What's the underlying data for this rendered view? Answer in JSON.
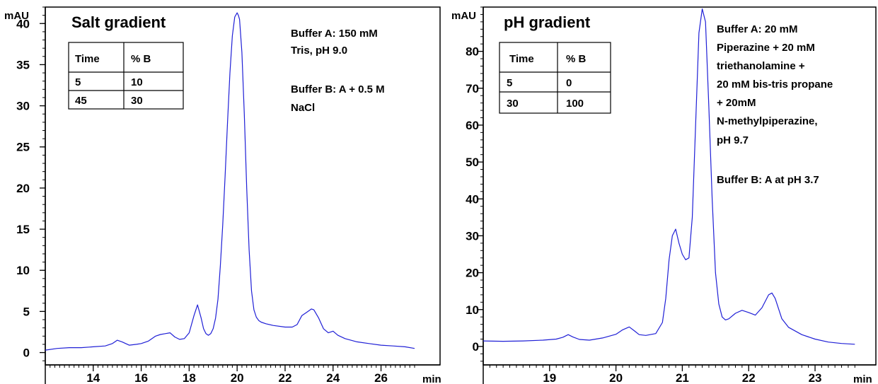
{
  "chart_data": [
    {
      "type": "line",
      "title": "Salt gradient",
      "ylabel": "mAU",
      "xunit": "min",
      "xlim": [
        12.0,
        27.4
      ],
      "ylim": [
        -1.5,
        42.0
      ],
      "xticks": [
        14,
        16,
        18,
        20,
        22,
        24,
        26
      ],
      "yticks": [
        0,
        5,
        10,
        15,
        20,
        25,
        30,
        35,
        40
      ],
      "xminor_step": 0.2,
      "yminor_step": 1,
      "line_color": "#1f1fd6",
      "grid": false,
      "table": {
        "headers": [
          "Time",
          "% B"
        ],
        "rows": [
          [
            "5",
            "10"
          ],
          [
            "45",
            "30"
          ]
        ]
      },
      "notes": [
        "Buffer A: 150 mM",
        "Tris, pH 9.0",
        "",
        "Buffer B: A + 0.5 M",
        "NaCl"
      ],
      "series": [
        {
          "x": [
            12.0,
            12.5,
            13.0,
            13.5,
            14.0,
            14.5,
            14.8,
            15.0,
            15.2,
            15.5,
            15.8,
            16.0,
            16.3,
            16.6,
            16.8,
            17.0,
            17.2,
            17.4,
            17.6,
            17.8,
            18.0,
            18.2,
            18.35,
            18.5,
            18.6,
            18.7,
            18.8,
            18.9,
            19.0,
            19.1,
            19.2,
            19.3,
            19.4,
            19.5,
            19.6,
            19.7,
            19.8,
            19.9,
            20.0,
            20.05,
            20.1,
            20.2,
            20.3,
            20.4,
            20.5,
            20.6,
            20.7,
            20.8,
            20.9,
            21.0,
            21.2,
            21.5,
            22.0,
            22.3,
            22.5,
            22.7,
            22.9,
            23.1,
            23.2,
            23.4,
            23.6,
            23.8,
            24.0,
            24.2,
            24.5,
            25.0,
            25.5,
            26.0,
            26.5,
            27.0,
            27.4
          ],
          "y": [
            0.3,
            0.5,
            0.6,
            0.6,
            0.7,
            0.8,
            1.1,
            1.5,
            1.3,
            0.9,
            1.0,
            1.1,
            1.4,
            2.0,
            2.2,
            2.3,
            2.4,
            1.9,
            1.6,
            1.7,
            2.4,
            4.5,
            5.8,
            4.2,
            2.9,
            2.3,
            2.1,
            2.3,
            2.9,
            4.2,
            6.5,
            10.5,
            15.5,
            21.5,
            28.0,
            34.0,
            38.5,
            40.8,
            41.3,
            41.0,
            40.5,
            36.5,
            29.0,
            20.0,
            12.5,
            7.5,
            5.2,
            4.3,
            3.9,
            3.7,
            3.5,
            3.3,
            3.1,
            3.1,
            3.4,
            4.5,
            4.9,
            5.3,
            5.2,
            4.2,
            2.9,
            2.4,
            2.6,
            2.1,
            1.7,
            1.3,
            1.1,
            0.9,
            0.8,
            0.7,
            0.5
          ]
        }
      ]
    },
    {
      "type": "line",
      "title": "pH gradient",
      "ylabel": "mAU",
      "xunit": "min",
      "xlim": [
        18.0,
        23.65
      ],
      "ylim": [
        -5.0,
        92.0
      ],
      "xticks": [
        19,
        20,
        21,
        22,
        23
      ],
      "yticks": [
        0,
        10,
        20,
        30,
        40,
        50,
        60,
        70,
        80
      ],
      "xminor_step": 0.1,
      "yminor_step": 2,
      "line_color": "#1f1fd6",
      "grid": false,
      "table": {
        "headers": [
          "Time",
          "% B"
        ],
        "rows": [
          [
            "5",
            "0"
          ],
          [
            "30",
            "100"
          ]
        ]
      },
      "notes": [
        "Buffer A: 20 mM",
        "Piperazine + 20 mM",
        "triethanolamine +",
        "20 mM bis-tris propane",
        "+ 20mM",
        "N-methylpiperazine,",
        "pH 9.7",
        "",
        "Buffer B: A at pH 3.7"
      ],
      "series": [
        {
          "x": [
            18.0,
            18.3,
            18.6,
            18.9,
            19.1,
            19.2,
            19.28,
            19.35,
            19.45,
            19.6,
            19.8,
            20.0,
            20.1,
            20.2,
            20.28,
            20.35,
            20.45,
            20.6,
            20.7,
            20.75,
            20.8,
            20.85,
            20.9,
            20.95,
            21.0,
            21.05,
            21.1,
            21.15,
            21.2,
            21.25,
            21.3,
            21.35,
            21.4,
            21.45,
            21.5,
            21.55,
            21.6,
            21.65,
            21.7,
            21.8,
            21.9,
            22.0,
            22.1,
            22.2,
            22.3,
            22.35,
            22.4,
            22.5,
            22.6,
            22.8,
            23.0,
            23.2,
            23.4,
            23.6
          ],
          "y": [
            1.5,
            1.4,
            1.5,
            1.7,
            2.0,
            2.5,
            3.2,
            2.6,
            1.9,
            1.7,
            2.3,
            3.3,
            4.5,
            5.3,
            4.2,
            3.2,
            3.0,
            3.5,
            6.5,
            13.0,
            23.5,
            30.0,
            31.8,
            28.0,
            25.0,
            23.5,
            24.0,
            35.0,
            60.0,
            85.0,
            91.5,
            88.0,
            65.0,
            40.0,
            20.0,
            11.5,
            8.0,
            7.2,
            7.5,
            9.0,
            9.8,
            9.2,
            8.5,
            10.5,
            14.0,
            14.5,
            13.0,
            7.5,
            5.2,
            3.2,
            2.0,
            1.2,
            0.8,
            0.6
          ]
        }
      ]
    }
  ]
}
